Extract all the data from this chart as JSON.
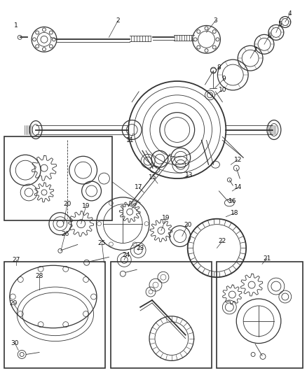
{
  "bg_color": "#ffffff",
  "line_color": "#333333",
  "label_color": "#111111",
  "fig_width": 4.38,
  "fig_height": 5.33,
  "dpi": 100
}
